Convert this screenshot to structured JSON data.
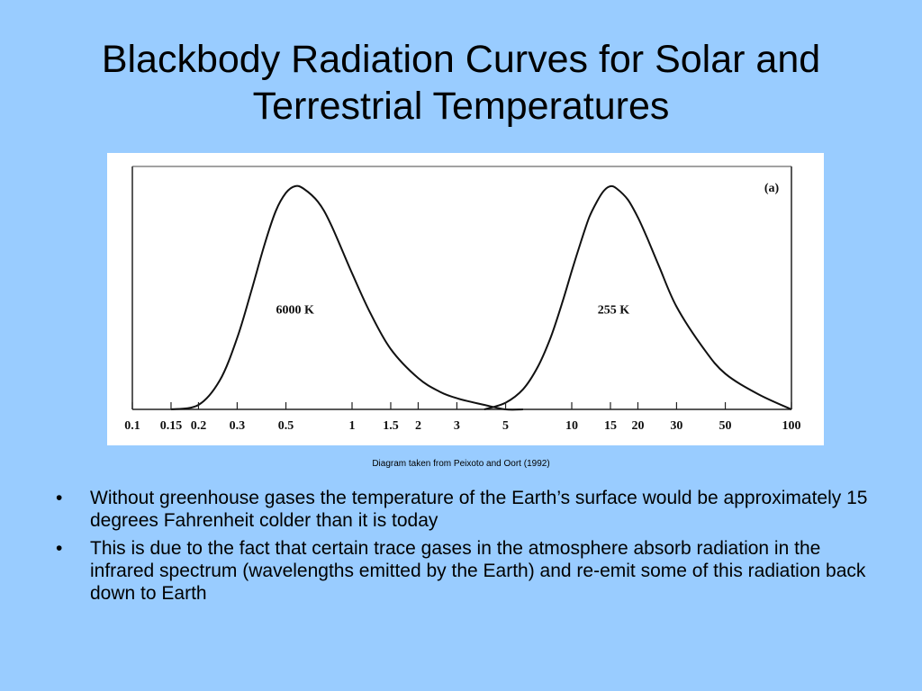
{
  "slide": {
    "title_line1": "Blackbody Radiation Curves for Solar and",
    "title_line2": "Terrestrial Temperatures",
    "caption": "Diagram taken from Peixoto and Oort (1992)",
    "bullet_symbol": "•",
    "bullets": [
      "Without greenhouse gases the temperature of the Earth’s surface would be approximately 15 degrees Fahrenheit colder than it is today",
      "This is due to the fact that certain trace gases in the atmosphere absorb radiation in the infrared spectrum (wavelengths emitted by the Earth) and re-emit some of this radiation back down to Earth"
    ],
    "background_color": "#99ccff"
  },
  "chart_data": {
    "type": "line",
    "panel_label": "(a)",
    "x_scale": "log",
    "xlim": [
      0.1,
      100
    ],
    "x_ticks": [
      {
        "value": 0.1,
        "label": "0.1"
      },
      {
        "value": 0.15,
        "label": "0.15"
      },
      {
        "value": 0.2,
        "label": "0.2"
      },
      {
        "value": 0.3,
        "label": "0.3"
      },
      {
        "value": 0.5,
        "label": "0.5"
      },
      {
        "value": 1,
        "label": "1"
      },
      {
        "value": 1.5,
        "label": "1.5"
      },
      {
        "value": 2,
        "label": "2"
      },
      {
        "value": 3,
        "label": "3"
      },
      {
        "value": 5,
        "label": "5"
      },
      {
        "value": 10,
        "label": "10"
      },
      {
        "value": 15,
        "label": "15"
      },
      {
        "value": 20,
        "label": "20"
      },
      {
        "value": 30,
        "label": "30"
      },
      {
        "value": 50,
        "label": "50"
      },
      {
        "value": 100,
        "label": "100"
      }
    ],
    "ylim": [
      0,
      1
    ],
    "grid": false,
    "series": [
      {
        "name": "6000 K",
        "x": [
          0.15,
          0.2,
          0.25,
          0.3,
          0.35,
          0.4,
          0.45,
          0.5,
          0.55,
          0.6,
          0.7,
          0.8,
          1.0,
          1.2,
          1.5,
          2.0,
          2.5,
          3.0,
          4.0,
          5.0,
          6.0
        ],
        "y": [
          0.0,
          0.02,
          0.13,
          0.32,
          0.54,
          0.74,
          0.89,
          0.97,
          1.0,
          0.99,
          0.93,
          0.83,
          0.61,
          0.44,
          0.27,
          0.14,
          0.08,
          0.05,
          0.02,
          0.0,
          0.0
        ]
      },
      {
        "name": "255 K",
        "x": [
          4.0,
          5.0,
          6.0,
          7.0,
          8.0,
          9.0,
          10.0,
          11.0,
          12.0,
          13.0,
          14.0,
          15.0,
          16.0,
          18.0,
          20.0,
          22.0,
          25.0,
          30.0,
          40.0,
          50.0,
          70.0,
          100.0
        ],
        "y": [
          0.0,
          0.03,
          0.09,
          0.19,
          0.32,
          0.47,
          0.62,
          0.75,
          0.86,
          0.93,
          0.98,
          1.0,
          0.99,
          0.94,
          0.86,
          0.77,
          0.64,
          0.46,
          0.27,
          0.16,
          0.07,
          0.0
        ]
      }
    ]
  }
}
